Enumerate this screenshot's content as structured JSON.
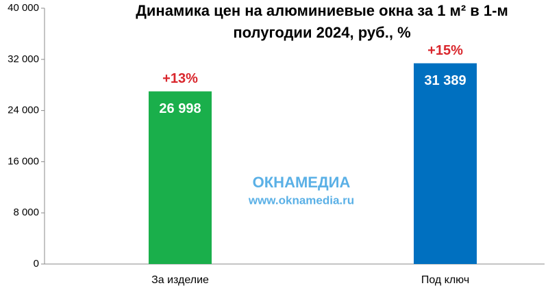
{
  "chart_data": {
    "type": "bar",
    "title": "Динамика цен на алюминиевые окна за 1 м² в 1-м полугодии 2024, руб., %",
    "categories": [
      "За изделие",
      "Под ключ"
    ],
    "values": [
      26998,
      31389
    ],
    "value_labels": [
      "26 998",
      "31 389"
    ],
    "annotations": [
      "+13%",
      "+15%"
    ],
    "colors": [
      "#1aaf4b",
      "#0070c0"
    ],
    "ylim": [
      0,
      40000
    ],
    "yticks": [
      {
        "value": 0,
        "label": "0"
      },
      {
        "value": 8000,
        "label": "8 000"
      },
      {
        "value": 16000,
        "label": "16 000"
      },
      {
        "value": 24000,
        "label": "24 000"
      },
      {
        "value": 32000,
        "label": "32 000"
      },
      {
        "value": 40000,
        "label": "40 000"
      }
    ],
    "grid": false,
    "watermark": [
      "ОКНАМЕДИА",
      "www.oknamedia.ru"
    ]
  }
}
